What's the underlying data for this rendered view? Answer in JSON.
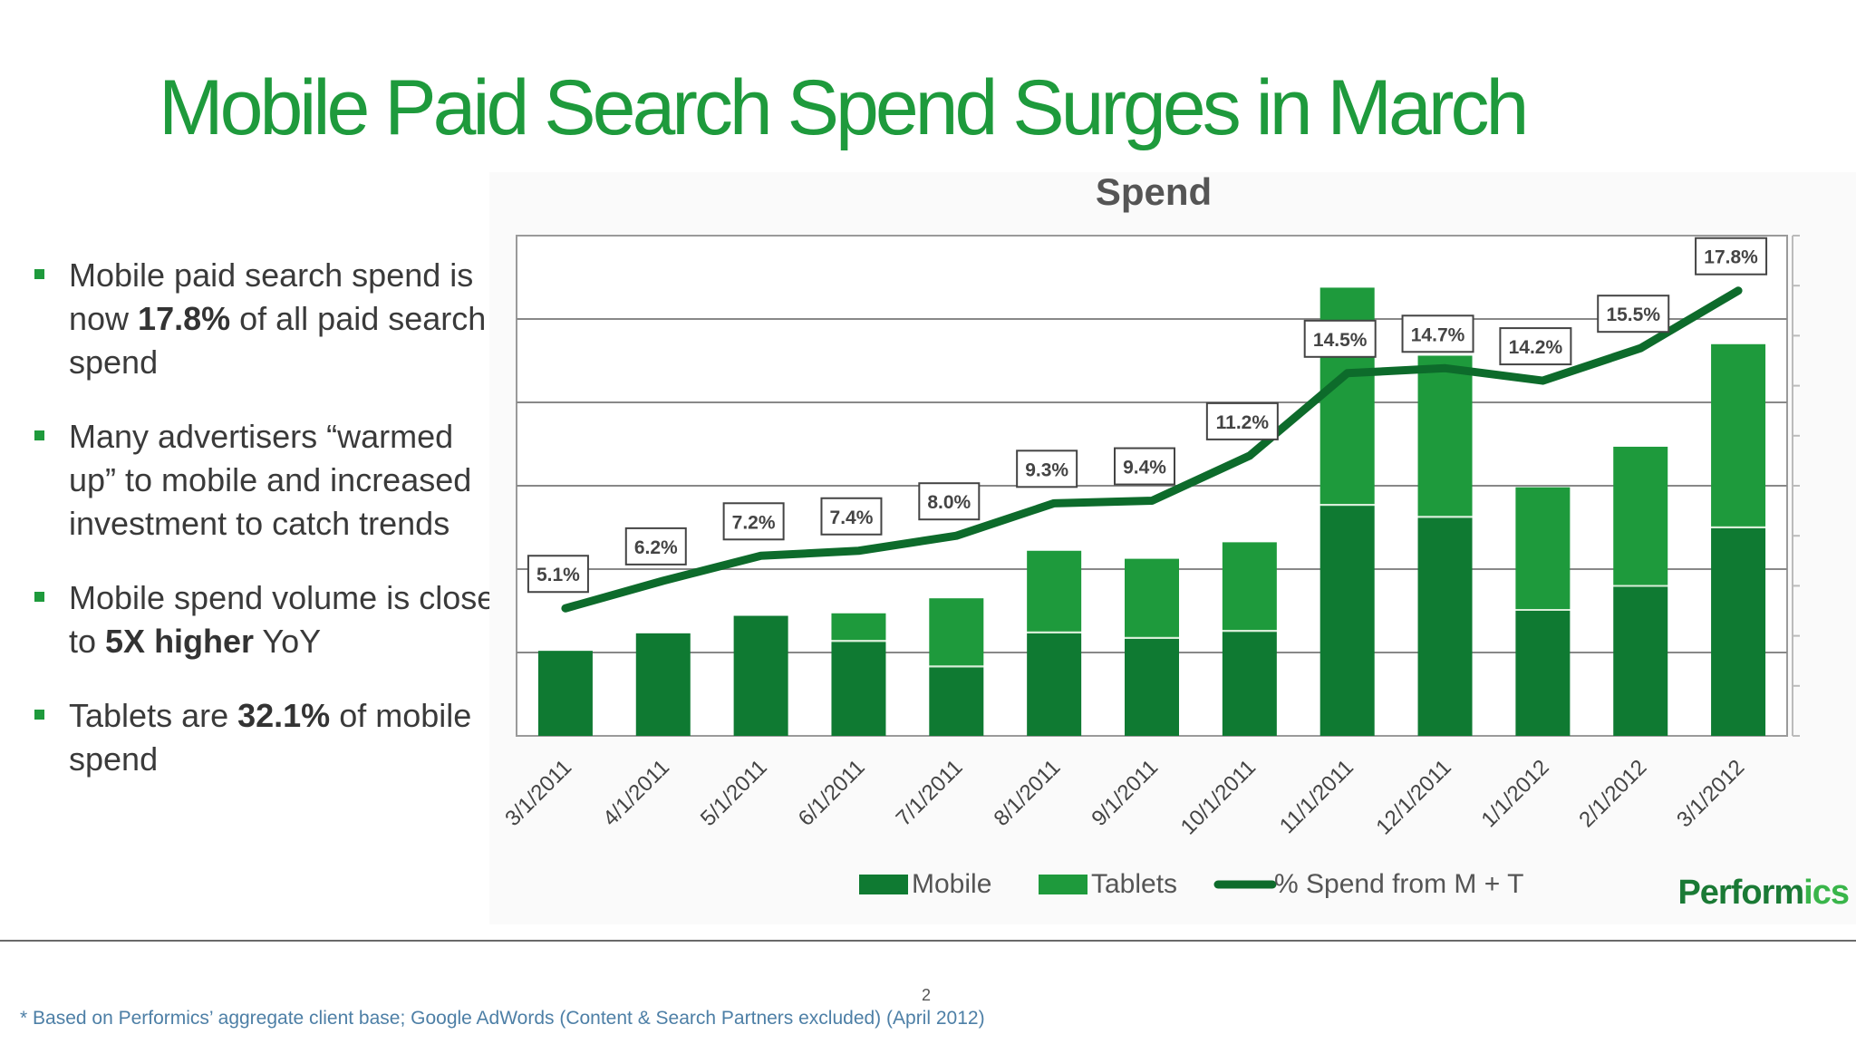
{
  "slide": {
    "title": "Mobile Paid Search Spend Surges in March",
    "page_number": "2",
    "footnote": "* Based on Performics’ aggregate client base; Google AdWords (Content & Search Partners excluded) (April 2012)"
  },
  "bullets": [
    {
      "t1": "Mobile paid search spend is now ",
      "b1": "17.8%",
      "t2": " of all paid search spend"
    },
    {
      "t1": "Many advertisers “warmed up”  to mobile and increased  investment to catch trends",
      "b1": "",
      "t2": ""
    },
    {
      "t1": "Mobile spend volume is close to ",
      "b1": "5X higher",
      "t2": " YoY"
    },
    {
      "t1": "Tablets are ",
      "b1": "32.1%",
      "t2": " of mobile spend"
    }
  ],
  "colors": {
    "title": "#1e9a3c",
    "mobile": "#0f7a32",
    "tablets": "#1e9a3c",
    "line": "#0d6b2b",
    "grid": "#888888",
    "brand_dark": "#1a7a35",
    "brand_light": "#39b54a"
  },
  "chart_data": {
    "type": "bar",
    "stacked": true,
    "title": "Spend",
    "categories": [
      "3/1/2011",
      "4/1/2011",
      "5/1/2011",
      "6/1/2011",
      "7/1/2011",
      "8/1/2011",
      "9/1/2011",
      "10/1/2011",
      "11/1/2011",
      "12/1/2011",
      "1/1/2012",
      "2/1/2012",
      "3/1/2012"
    ],
    "series": [
      {
        "name": "Mobile",
        "values": [
          1.7,
          2.05,
          2.4,
          1.88,
          1.37,
          2.05,
          1.94,
          2.08,
          4.6,
          4.36,
          2.5,
          2.98,
          4.15
        ]
      },
      {
        "name": "Tablets",
        "values": [
          0,
          0,
          0,
          0.57,
          1.38,
          1.65,
          1.6,
          1.79,
          4.36,
          3.24,
          2.47,
          2.8,
          3.68
        ]
      }
    ],
    "line_series": {
      "name": "% Spend from M + T",
      "values": [
        5.1,
        6.2,
        7.2,
        7.4,
        8.0,
        9.3,
        9.4,
        11.2,
        14.5,
        14.7,
        14.2,
        15.5,
        17.8
      ],
      "labels": [
        "5.1%",
        "6.2%",
        "7.2%",
        "7.4%",
        "8.0%",
        "9.3%",
        "9.4%",
        "11.2%",
        "14.5%",
        "14.7%",
        "14.2%",
        "15.5%",
        "17.8%"
      ]
    },
    "ylim": [
      0,
      10
    ],
    "y2lim": [
      0,
      20
    ],
    "grid": true,
    "legend": [
      "Mobile",
      "Tablets",
      "% Spend from M + T"
    ],
    "legend_position": "bottom",
    "watermark": "Performics"
  }
}
